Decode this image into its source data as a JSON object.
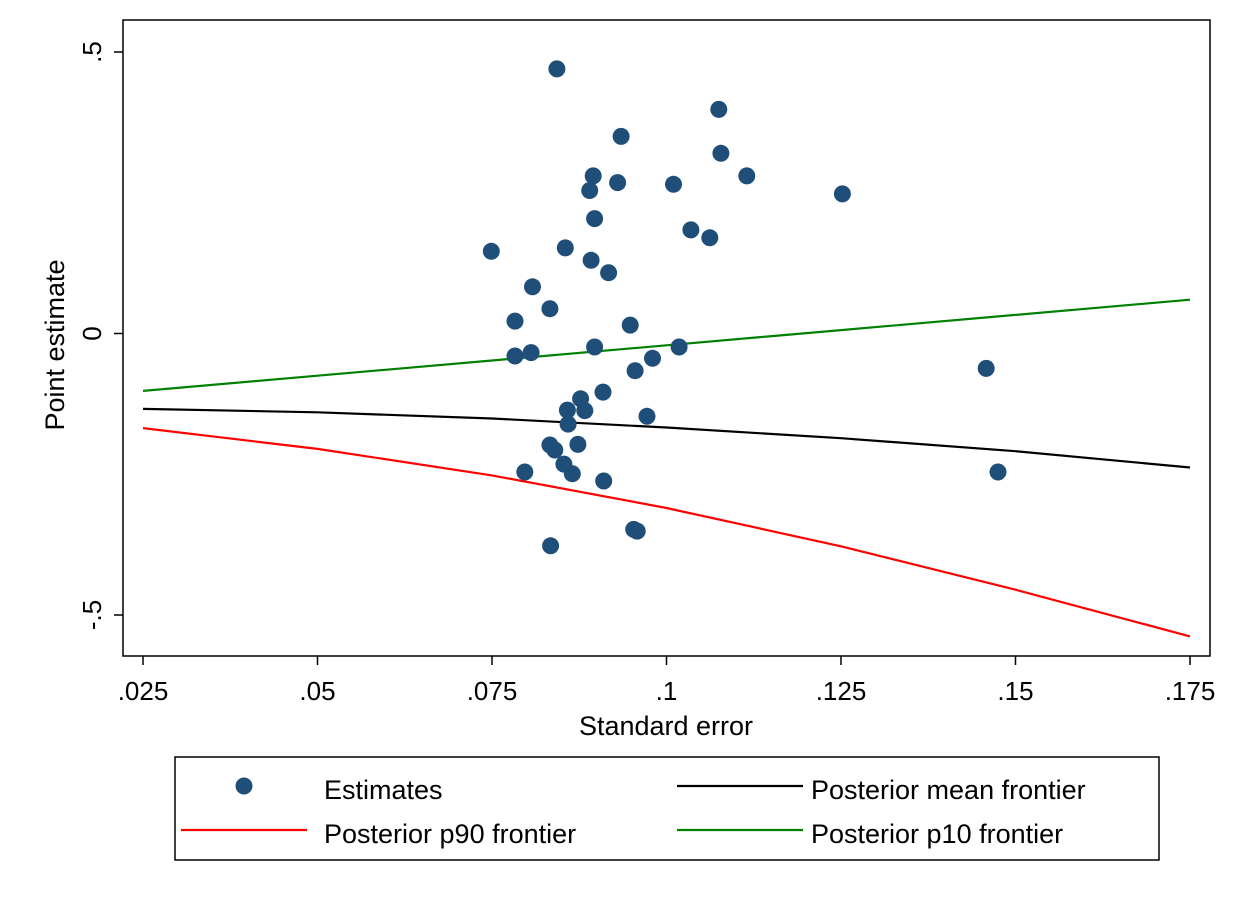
{
  "chart_data": {
    "type": "scatter",
    "xlabel": "Standard error",
    "ylabel": "Point estimate",
    "xlim": [
      0.025,
      0.175
    ],
    "ylim": [
      -0.5,
      0.5
    ],
    "xticks": [
      0.025,
      0.05,
      0.075,
      0.1,
      0.125,
      0.15,
      0.175
    ],
    "xtick_labels": [
      ".025",
      ".05",
      ".075",
      ".1",
      ".125",
      ".15",
      ".175"
    ],
    "yticks": [
      -0.5,
      0,
      0.5
    ],
    "ytick_labels": [
      "-.5",
      "0",
      ".5"
    ],
    "grid": false,
    "legend_position": "bottom",
    "series": [
      {
        "name": "Estimates",
        "kind": "scatter",
        "color": "#1f4e79",
        "points": [
          [
            0.0843,
            0.47
          ],
          [
            0.1075,
            0.398
          ],
          [
            0.0935,
            0.35
          ],
          [
            0.1078,
            0.32
          ],
          [
            0.0895,
            0.28
          ],
          [
            0.093,
            0.268
          ],
          [
            0.101,
            0.265
          ],
          [
            0.089,
            0.254
          ],
          [
            0.1115,
            0.28
          ],
          [
            0.1252,
            0.248
          ],
          [
            0.0897,
            0.204
          ],
          [
            0.1035,
            0.184
          ],
          [
            0.1062,
            0.17
          ],
          [
            0.0749,
            0.146
          ],
          [
            0.0855,
            0.152
          ],
          [
            0.0892,
            0.13
          ],
          [
            0.0917,
            0.108
          ],
          [
            0.0808,
            0.083
          ],
          [
            0.0833,
            0.044
          ],
          [
            0.0783,
            0.022
          ],
          [
            0.0948,
            0.015
          ],
          [
            0.0897,
            -0.024
          ],
          [
            0.1018,
            -0.024
          ],
          [
            0.0806,
            -0.034
          ],
          [
            0.0783,
            -0.04
          ],
          [
            0.098,
            -0.044
          ],
          [
            0.0955,
            -0.066
          ],
          [
            0.1458,
            -0.062
          ],
          [
            0.0909,
            -0.104
          ],
          [
            0.0877,
            -0.116
          ],
          [
            0.0858,
            -0.136
          ],
          [
            0.0883,
            -0.137
          ],
          [
            0.0972,
            -0.147
          ],
          [
            0.0859,
            -0.161
          ],
          [
            0.0833,
            -0.198
          ],
          [
            0.084,
            -0.207
          ],
          [
            0.0873,
            -0.197
          ],
          [
            0.0853,
            -0.232
          ],
          [
            0.0797,
            -0.246
          ],
          [
            0.0865,
            -0.249
          ],
          [
            0.091,
            -0.262
          ],
          [
            0.1475,
            -0.246
          ],
          [
            0.0953,
            -0.348
          ],
          [
            0.0958,
            -0.351
          ],
          [
            0.0834,
            -0.377
          ]
        ]
      },
      {
        "name": "Posterior mean frontier",
        "kind": "line",
        "color": "#000000",
        "x": [
          0.025,
          0.05,
          0.075,
          0.1,
          0.125,
          0.15,
          0.175
        ],
        "y": [
          -0.134,
          -0.14,
          -0.151,
          -0.167,
          -0.186,
          -0.209,
          -0.238
        ]
      },
      {
        "name": "Posterior p90 frontier",
        "kind": "line",
        "color": "#ff0000",
        "x": [
          0.025,
          0.05,
          0.075,
          0.1,
          0.125,
          0.15,
          0.175
        ],
        "y": [
          -0.168,
          -0.205,
          -0.252,
          -0.31,
          -0.378,
          -0.455,
          -0.538
        ]
      },
      {
        "name": "Posterior p10 frontier",
        "kind": "line",
        "color": "#008000",
        "x": [
          0.025,
          0.05,
          0.075,
          0.1,
          0.125,
          0.15,
          0.175
        ],
        "y": [
          -0.102,
          -0.075,
          -0.048,
          -0.021,
          0.006,
          0.033,
          0.06
        ]
      }
    ],
    "legend": [
      {
        "label": "Estimates",
        "kind": "marker",
        "color": "#1f4e79"
      },
      {
        "label": "Posterior mean frontier",
        "kind": "line",
        "color": "#000000"
      },
      {
        "label": "Posterior p90 frontier",
        "kind": "line",
        "color": "#ff0000"
      },
      {
        "label": "Posterior p10 frontier",
        "kind": "line",
        "color": "#008000"
      }
    ]
  }
}
